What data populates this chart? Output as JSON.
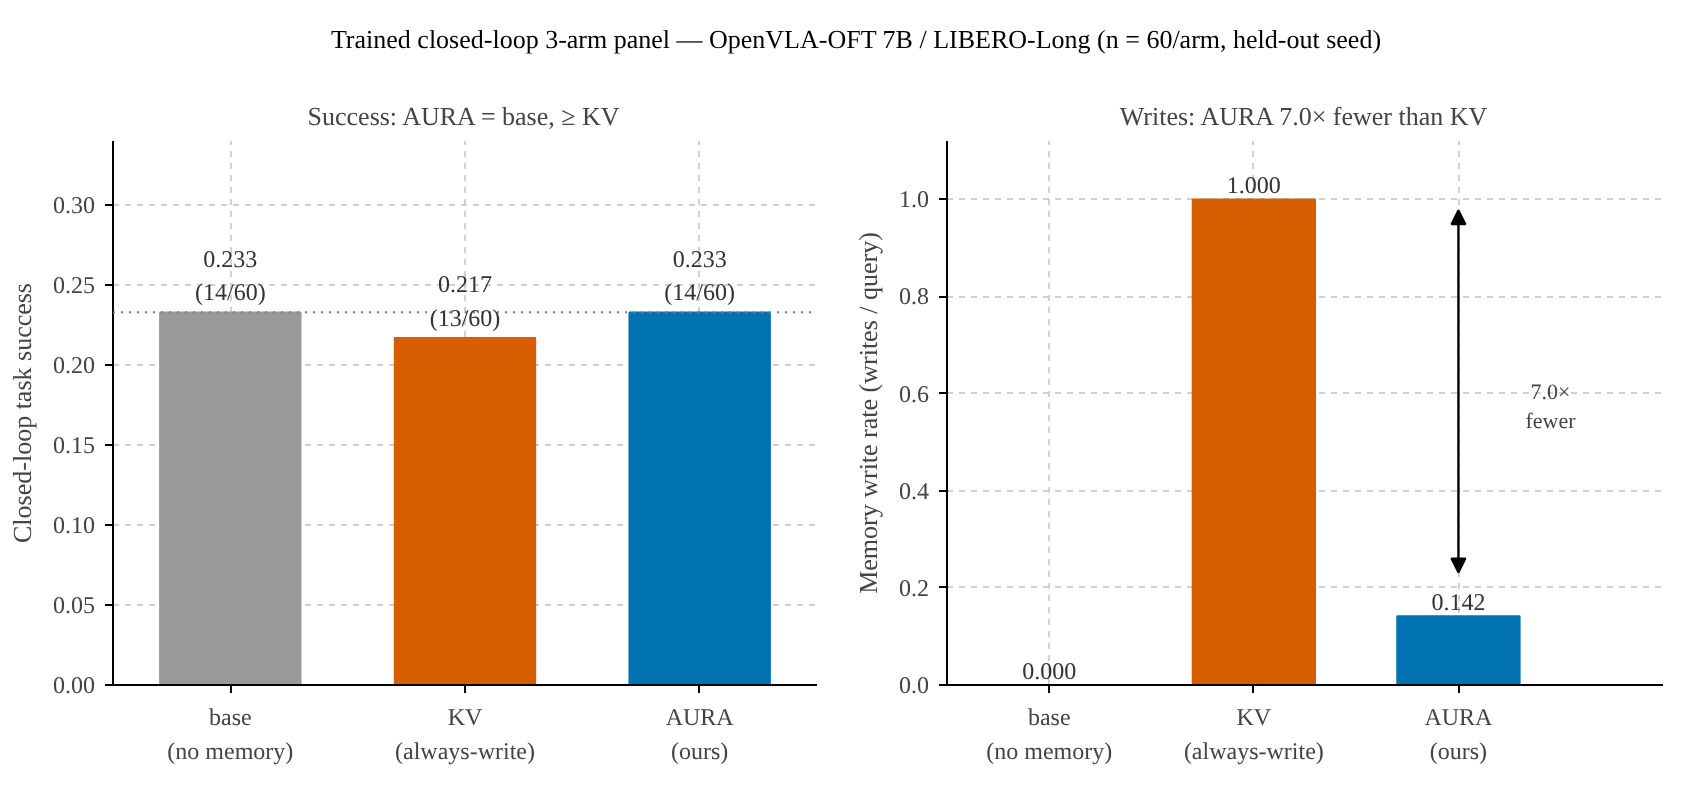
{
  "chart_data": [
    {
      "type": "bar",
      "title": "Trained closed-loop 3-arm panel — OpenVLA-OFT 7B / LIBERO-Long (n = 60/arm, held-out seed)",
      "subtitle": "Success: AURA = base, ≥ KV",
      "ylabel": "Closed-loop task success",
      "categories": [
        "base\n(no memory)",
        "KV\n(always-write)",
        "AURA\n(ours)"
      ],
      "values": [
        0.233,
        0.217,
        0.233
      ],
      "colors": [
        "#999999",
        "#d55e00",
        "#0072b2"
      ],
      "value_labels": [
        "0.233\n(14/60)",
        "0.217\n(13/60)",
        "0.233\n(14/60)"
      ],
      "ylim": [
        0,
        0.34
      ],
      "yticks": [
        {
          "value": 0,
          "label": "0.00"
        },
        0.05,
        {
          "value": 0.1,
          "label": "0.10"
        },
        0.15,
        {
          "value": 0.2,
          "label": "0.20"
        },
        0.25,
        {
          "value": 0.3,
          "label": "0.30"
        }
      ],
      "ref_lines": [
        {
          "axis": "y",
          "value": 0.233,
          "line_style": "dotted",
          "color": "#808080"
        }
      ],
      "grid": true
    },
    {
      "type": "bar",
      "title": "Writes: AURA 7.0× fewer than KV",
      "ylabel": "Memory write rate (writes / query)",
      "categories": [
        "base\n(no memory)",
        "KV\n(always-write)",
        "AURA\n(ours)"
      ],
      "values": [
        0.0,
        1.0,
        0.142
      ],
      "colors": [
        "#999999",
        "#d55e00",
        "#0072b2"
      ],
      "value_labels": [
        "0.000",
        "1.000",
        "0.142"
      ],
      "ylim": [
        0,
        1.12
      ],
      "yticks": [
        {
          "value": 0,
          "label": "0.0"
        },
        {
          "value": 0.2,
          "label": "0.2"
        },
        {
          "value": 0.4,
          "label": "0.4"
        },
        {
          "value": 0.6,
          "label": "0.6"
        },
        {
          "value": 0.8,
          "label": "0.8"
        },
        {
          "value": 1,
          "label": "1.0"
        }
      ],
      "grid": true,
      "annotations": [
        "7.0×\nfewer"
      ]
    }
  ]
}
